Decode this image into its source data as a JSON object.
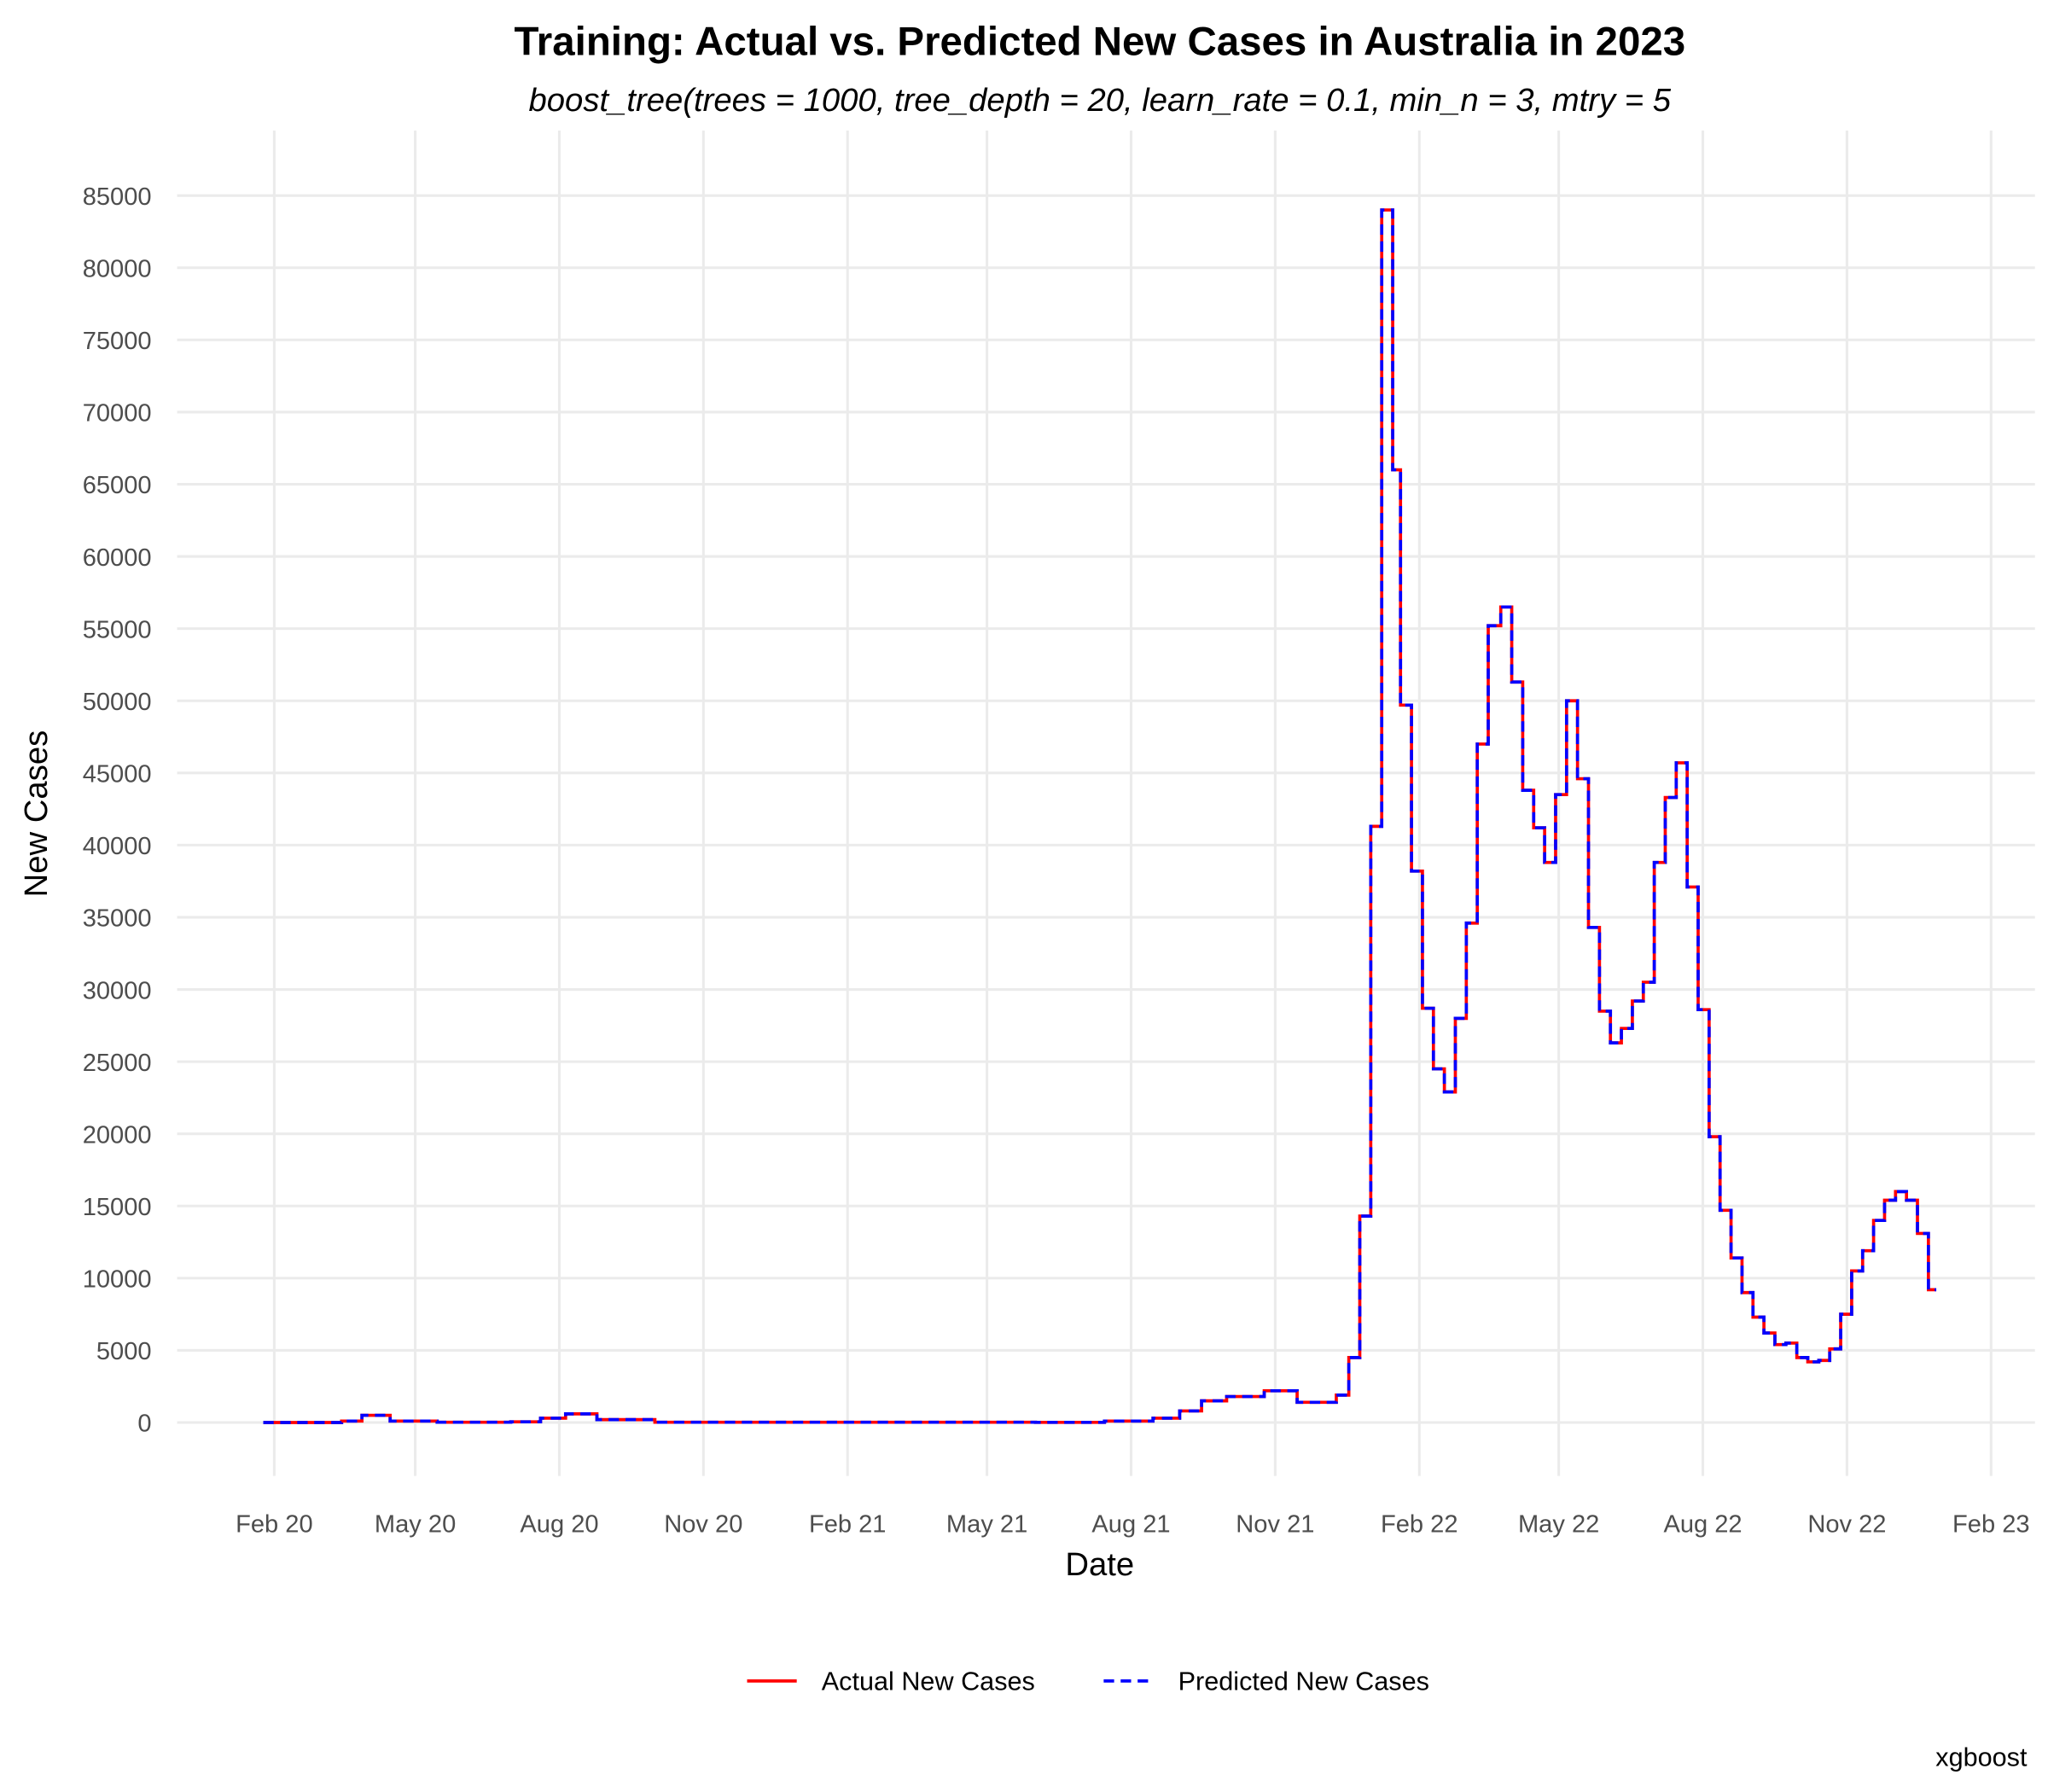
{
  "chart_data": {
    "type": "line",
    "title": "Training: Actual vs. Predicted New Cases in Australia in 2023",
    "subtitle": "boost_tree(trees = 1000, tree_depth = 20, learn_rate = 0.1, min_n = 3, mtry = 5",
    "x_label": "Date",
    "y_label": "New Cases",
    "caption": "xgboost",
    "step": true,
    "grid": true,
    "legend": "bottom",
    "x": [
      "2020-01-25",
      "2020-03-15",
      "2020-03-28",
      "2020-04-15",
      "2020-05-15",
      "2020-07-01",
      "2020-07-20",
      "2020-08-05",
      "2020-08-25",
      "2020-10-01",
      "2021-06-01",
      "2021-07-15",
      "2021-08-15",
      "2021-09-01",
      "2021-09-15",
      "2021-10-01",
      "2021-10-25",
      "2021-11-15",
      "2021-12-10",
      "2021-12-18",
      "2021-12-25",
      "2022-01-01",
      "2022-01-08",
      "2022-01-15",
      "2022-01-20",
      "2022-01-27",
      "2022-02-03",
      "2022-02-10",
      "2022-02-17",
      "2022-02-24",
      "2022-03-03",
      "2022-03-10",
      "2022-03-17",
      "2022-03-25",
      "2022-04-01",
      "2022-04-08",
      "2022-04-15",
      "2022-04-22",
      "2022-04-29",
      "2022-05-06",
      "2022-05-13",
      "2022-05-20",
      "2022-05-27",
      "2022-06-03",
      "2022-06-10",
      "2022-06-17",
      "2022-06-24",
      "2022-07-01",
      "2022-07-08",
      "2022-07-15",
      "2022-07-22",
      "2022-07-29",
      "2022-08-05",
      "2022-08-12",
      "2022-08-19",
      "2022-08-26",
      "2022-09-02",
      "2022-09-09",
      "2022-09-16",
      "2022-09-23",
      "2022-09-30",
      "2022-10-07",
      "2022-10-14",
      "2022-10-21",
      "2022-10-28",
      "2022-11-04",
      "2022-11-11",
      "2022-11-18",
      "2022-11-25",
      "2022-12-02",
      "2022-12-09",
      "2022-12-16",
      "2022-12-23",
      "2022-12-28"
    ],
    "series": [
      {
        "name": "Actual New Cases",
        "color": "#ff0000",
        "dash": false,
        "values": [
          0,
          100,
          500,
          100,
          20,
          50,
          300,
          600,
          200,
          20,
          10,
          100,
          300,
          800,
          1500,
          1800,
          2200,
          1400,
          1900,
          4500,
          14300,
          41300,
          84000,
          66000,
          49700,
          38200,
          28700,
          24500,
          22900,
          28000,
          34600,
          47000,
          55200,
          56500,
          51300,
          43800,
          41200,
          38800,
          43500,
          50000,
          44600,
          34300,
          28500,
          26300,
          27300,
          29200,
          30500,
          38800,
          43300,
          45700,
          37100,
          28600,
          19800,
          14700,
          11400,
          9000,
          7300,
          6200,
          5400,
          5500,
          4500,
          4200,
          4300,
          5100,
          7500,
          10500,
          11900,
          14000,
          15400,
          16000,
          15400,
          13100,
          9200,
          9200
        ]
      },
      {
        "name": "Predicted New Cases",
        "color": "#0000ff",
        "dash": true,
        "values": [
          0,
          100,
          500,
          100,
          20,
          50,
          300,
          600,
          200,
          20,
          10,
          100,
          300,
          800,
          1500,
          1800,
          2200,
          1400,
          1900,
          4500,
          14300,
          41300,
          84000,
          66000,
          49700,
          38200,
          28700,
          24500,
          22900,
          28000,
          34600,
          47000,
          55200,
          56500,
          51300,
          43800,
          41200,
          38800,
          43500,
          50000,
          44600,
          34300,
          28500,
          26300,
          27300,
          29200,
          30500,
          38800,
          43300,
          45700,
          37100,
          28600,
          19800,
          14700,
          11400,
          9000,
          7300,
          6200,
          5400,
          5500,
          4500,
          4200,
          4300,
          5100,
          7500,
          10500,
          11900,
          14000,
          15400,
          16000,
          15400,
          13100,
          9200,
          9200
        ]
      }
    ],
    "xlim": [
      "2019-12-01",
      "2023-03-01"
    ],
    "xticks": [
      {
        "value": "2020-02-01",
        "label": "Feb 20"
      },
      {
        "value": "2020-05-01",
        "label": "May 20"
      },
      {
        "value": "2020-08-01",
        "label": "Aug 20"
      },
      {
        "value": "2020-11-01",
        "label": "Nov 20"
      },
      {
        "value": "2021-02-01",
        "label": "Feb 21"
      },
      {
        "value": "2021-05-01",
        "label": "May 21"
      },
      {
        "value": "2021-08-01",
        "label": "Aug 21"
      },
      {
        "value": "2021-11-01",
        "label": "Nov 21"
      },
      {
        "value": "2022-02-01",
        "label": "Feb 22"
      },
      {
        "value": "2022-05-01",
        "label": "May 22"
      },
      {
        "value": "2022-08-01",
        "label": "Aug 22"
      },
      {
        "value": "2022-11-01",
        "label": "Nov 22"
      },
      {
        "value": "2023-02-01",
        "label": "Feb 23"
      }
    ],
    "ylim": [
      -3700,
      89500
    ],
    "yticks": [
      0,
      5000,
      10000,
      15000,
      20000,
      25000,
      30000,
      35000,
      40000,
      45000,
      50000,
      55000,
      60000,
      65000,
      70000,
      75000,
      80000,
      85000
    ]
  }
}
